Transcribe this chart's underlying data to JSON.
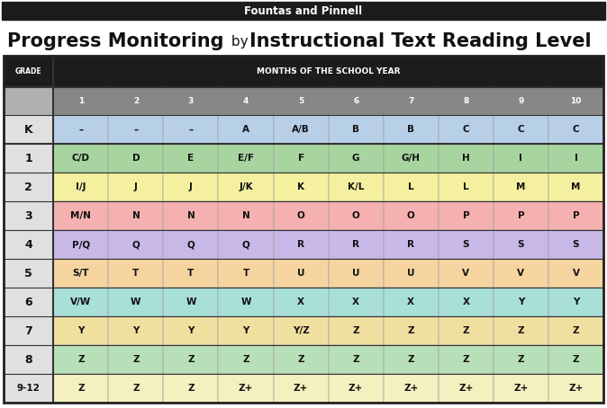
{
  "top_banner_text": "Fountas and Pinnell",
  "top_banner_bg": "#1c1c1c",
  "top_banner_text_color": "#ffffff",
  "title_bold1": "Progress Monitoring",
  "title_normal": " by ",
  "title_bold2": "Instructional Text Reading Level",
  "header_bg": "#1c1c1c",
  "header_text_color": "#ffffff",
  "grade_header": "GRADE",
  "months_header": "MONTHS OF THE SCHOOL YEAR",
  "month_numbers": [
    "1",
    "2",
    "3",
    "4",
    "5",
    "6",
    "7",
    "8",
    "9",
    "10"
  ],
  "month_number_bg": "#878787",
  "month_number_text_color": "#ffffff",
  "grades": [
    "K",
    "1",
    "2",
    "3",
    "4",
    "5",
    "6",
    "7",
    "8",
    "9-12"
  ],
  "table_data": [
    [
      "–",
      "–",
      "–",
      "A",
      "A/B",
      "B",
      "B",
      "C",
      "C",
      "C"
    ],
    [
      "C/D",
      "D",
      "E",
      "E/F",
      "F",
      "G",
      "G/H",
      "H",
      "I",
      "I"
    ],
    [
      "I/J",
      "J",
      "J",
      "J/K",
      "K",
      "K/L",
      "L",
      "L",
      "M",
      "M"
    ],
    [
      "M/N",
      "N",
      "N",
      "N",
      "O",
      "O",
      "O",
      "P",
      "P",
      "P"
    ],
    [
      "P/Q",
      "Q",
      "Q",
      "Q",
      "R",
      "R",
      "R",
      "S",
      "S",
      "S"
    ],
    [
      "S/T",
      "T",
      "T",
      "T",
      "U",
      "U",
      "U",
      "V",
      "V",
      "V"
    ],
    [
      "V/W",
      "W",
      "W",
      "W",
      "X",
      "X",
      "X",
      "X",
      "Y",
      "Y"
    ],
    [
      "Y",
      "Y",
      "Y",
      "Y",
      "Y/Z",
      "Z",
      "Z",
      "Z",
      "Z",
      "Z"
    ],
    [
      "Z",
      "Z",
      "Z",
      "Z",
      "Z",
      "Z",
      "Z",
      "Z",
      "Z",
      "Z"
    ],
    [
      "Z",
      "Z",
      "Z",
      "Z+",
      "Z+",
      "Z+",
      "Z+",
      "Z+",
      "Z+",
      "Z+"
    ]
  ],
  "row_colors": [
    "#b8cfe8",
    "#a8d4a0",
    "#f5f0a0",
    "#f5b0b0",
    "#c8b8e8",
    "#f5d4a0",
    "#a8e0d8",
    "#f0e0a0",
    "#b8e0b8",
    "#f5f0c0"
  ],
  "grade_col_bg": "#e0e0e0",
  "numrow_col_bg": "#b0b0b0",
  "bg_color": "#ffffff"
}
